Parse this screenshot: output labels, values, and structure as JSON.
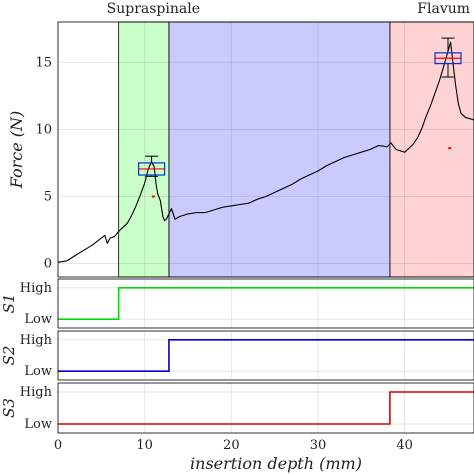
{
  "chart_data": {
    "type": "line",
    "xlabel": "insertion depth (mm)",
    "xlim": [
      0,
      48
    ],
    "xticks": [
      0,
      10,
      20,
      30,
      40
    ],
    "grid": true,
    "regions": [
      {
        "label": "",
        "from": 7.0,
        "to": 12.8,
        "color": "#66ff66"
      },
      {
        "label": "",
        "from": 12.8,
        "to": 38.3,
        "color": "#6666ff"
      },
      {
        "label": "",
        "from": 38.3,
        "to": 48.0,
        "color": "#ff8080"
      }
    ],
    "region_titles": [
      {
        "text": "Supraspinale",
        "x": 11.0
      },
      {
        "text": "Flavum",
        "x": 44.5
      }
    ],
    "force": {
      "ylabel": "Force (N)",
      "ylim": [
        -1,
        18
      ],
      "yticks": [
        0,
        5,
        10,
        15
      ],
      "series": [
        {
          "color": "#000000",
          "x": [
            0,
            1,
            2,
            3,
            4,
            5,
            5.4,
            5.7,
            6,
            6.5,
            7,
            7.5,
            8,
            8.5,
            9,
            9.5,
            10,
            10.4,
            10.8,
            11.1,
            11.3,
            11.5,
            11.8,
            12.1,
            12.3,
            12.5,
            12.8,
            13.1,
            13.5,
            14,
            15,
            16,
            17,
            18,
            19,
            20,
            21,
            22,
            23,
            24,
            25,
            26,
            27,
            28,
            29,
            30,
            31,
            32,
            33,
            34,
            35,
            36,
            37,
            38,
            38.4,
            39,
            40,
            40.5,
            41,
            41.5,
            42,
            42.5,
            43,
            43.5,
            44,
            44.5,
            45,
            45.3,
            45.6,
            45.9,
            46.2,
            46.5,
            47,
            48
          ],
          "y": [
            0.1,
            0.2,
            0.6,
            1.0,
            1.4,
            1.9,
            2.1,
            1.5,
            1.9,
            2.0,
            2.4,
            2.7,
            3.0,
            3.6,
            4.3,
            5.1,
            6.0,
            7.0,
            7.6,
            7.2,
            6.0,
            5.2,
            4.7,
            3.5,
            3.2,
            3.3,
            3.7,
            4.1,
            3.3,
            3.5,
            3.7,
            3.8,
            3.8,
            4.0,
            4.2,
            4.3,
            4.4,
            4.5,
            4.8,
            5.0,
            5.3,
            5.6,
            5.9,
            6.3,
            6.6,
            6.9,
            7.3,
            7.6,
            7.9,
            8.1,
            8.3,
            8.5,
            8.8,
            8.7,
            9.0,
            8.5,
            8.3,
            8.6,
            8.9,
            9.4,
            10.1,
            11.0,
            11.8,
            12.7,
            13.6,
            14.7,
            15.8,
            16.5,
            14.8,
            13.2,
            11.9,
            11.2,
            10.9,
            10.7
          ]
        }
      ],
      "markers": [
        {
          "x": 11.0,
          "y": 5.0,
          "color": "#ff0000"
        },
        {
          "x": 45.2,
          "y": 8.6,
          "color": "#ff0000"
        }
      ],
      "boxplots": [
        {
          "x": 10.8,
          "half_width": 1.5,
          "q1": 6.6,
          "q3": 7.5,
          "median": 7.05,
          "whisker_low": 6.5,
          "whisker_high": 8.0,
          "box_color": "#0033cc",
          "median_color": "#ff0000",
          "whisker_color": "#000000"
        },
        {
          "x": 45.0,
          "half_width": 1.5,
          "q1": 14.9,
          "q3": 15.7,
          "median": 15.3,
          "whisker_low": 13.9,
          "whisker_high": 16.8,
          "box_color": "#0033cc",
          "median_color": "#ff0000",
          "whisker_color": "#000000"
        }
      ]
    },
    "signals": [
      {
        "ylabel": "S1",
        "levels": [
          "Low",
          "High"
        ],
        "step_x": 7.0,
        "color": "#00dd00"
      },
      {
        "ylabel": "S2",
        "levels": [
          "Low",
          "High"
        ],
        "step_x": 12.8,
        "color": "#0000cc"
      },
      {
        "ylabel": "S3",
        "levels": [
          "Low",
          "High"
        ],
        "step_x": 38.3,
        "color": "#dd0000"
      }
    ]
  }
}
